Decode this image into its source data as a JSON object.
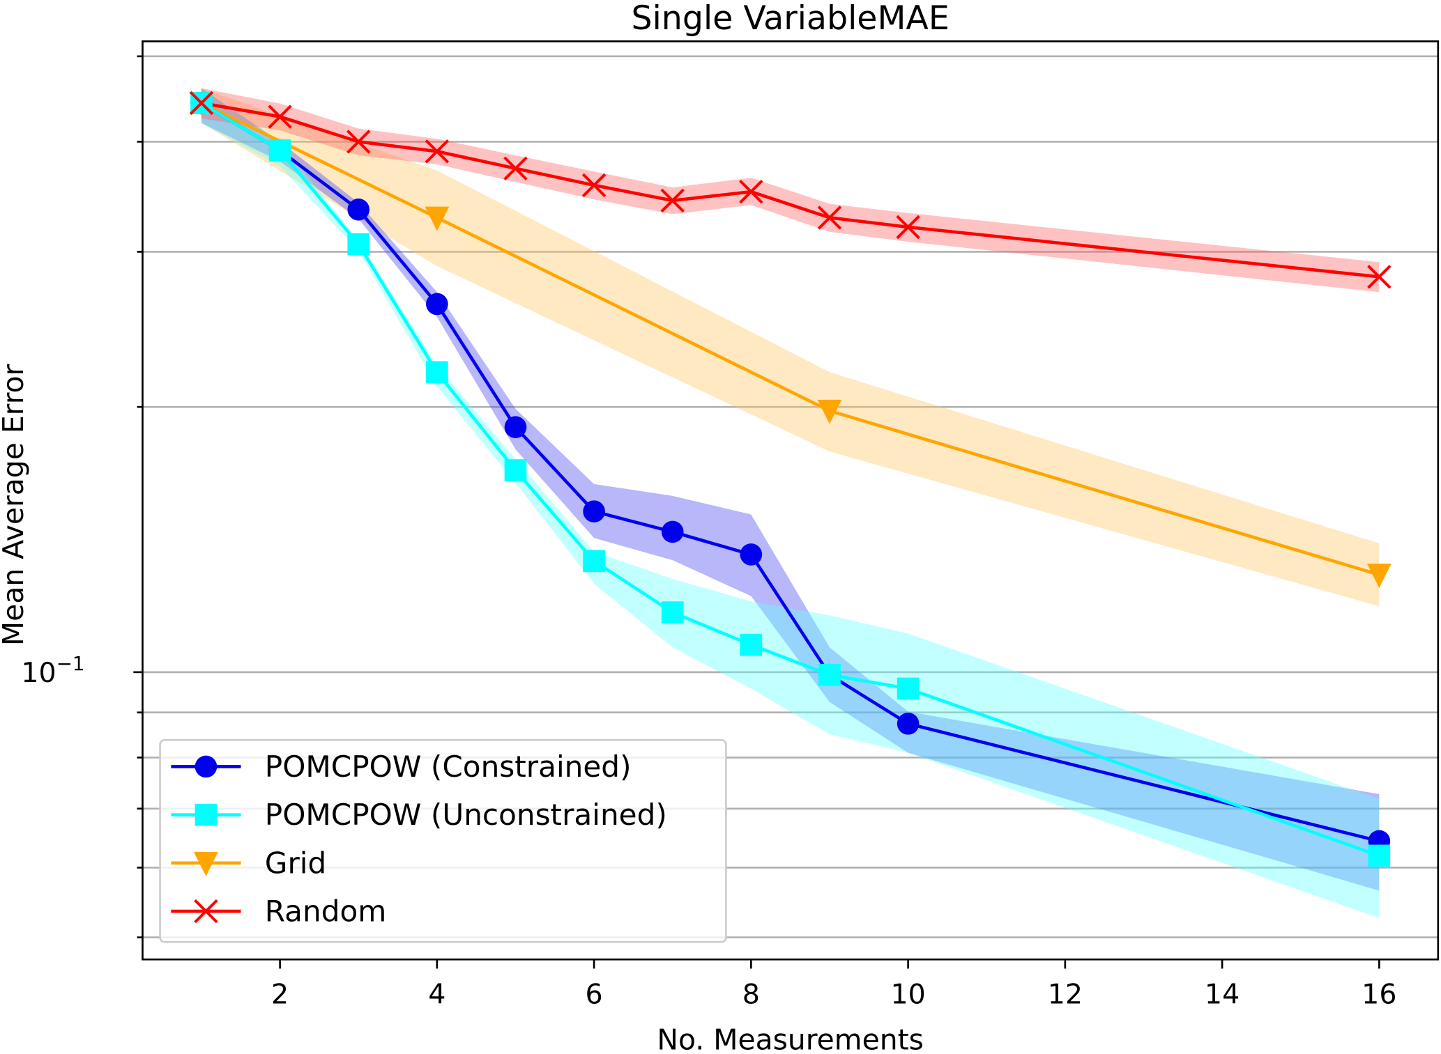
{
  "chart_data": {
    "type": "line",
    "title": "Single VariableMAE",
    "xlabel": "No. Measurements",
    "ylabel": "Mean Average Error",
    "yscale": "log",
    "xlim": [
      0.25,
      16.75
    ],
    "ylim": [
      0.0472,
      0.52
    ],
    "grid": "y",
    "legend_position": "lower-left",
    "x_ticks": [
      2,
      4,
      6,
      8,
      10,
      12,
      14,
      16
    ],
    "x_tick_labels": [
      "2",
      "4",
      "6",
      "8",
      "10",
      "12",
      "14",
      "16"
    ],
    "y_major_ticks": [
      0.1
    ],
    "y_major_tick_labels": [
      "10"
    ],
    "y_major_tick_exponent": "−1",
    "y_minor_ticks": [
      0.05,
      0.06,
      0.07,
      0.08,
      0.09,
      0.2,
      0.3,
      0.4,
      0.5
    ],
    "series": [
      {
        "name": "POMCPOW (Constrained)",
        "color": "#0000ee",
        "band_color": "#4a4af0",
        "marker": "circle",
        "x": [
          1,
          2,
          3,
          4,
          5,
          6,
          7,
          8,
          9,
          10,
          16
        ],
        "values": [
          0.4425,
          0.391,
          0.335,
          0.2617,
          0.1897,
          0.1522,
          0.1443,
          0.136,
          0.0993,
          0.0874,
          0.0643
        ],
        "lower": [
          0.42,
          0.38,
          0.327,
          0.253,
          0.179,
          0.142,
          0.134,
          0.122,
          0.0925,
          0.081,
          0.0565
        ],
        "upper": [
          0.46,
          0.4,
          0.341,
          0.27,
          0.199,
          0.1635,
          0.1585,
          0.151,
          0.1067,
          0.0902,
          0.0727
        ]
      },
      {
        "name": "POMCPOW (Unconstrained)",
        "color": "#00ffff",
        "band_color": "#66ffff",
        "marker": "square",
        "x": [
          1,
          2,
          3,
          4,
          5,
          6,
          7,
          8,
          9,
          10,
          16
        ],
        "values": [
          0.4425,
          0.391,
          0.306,
          0.219,
          0.1695,
          0.1337,
          0.1169,
          0.1074,
          0.0993,
          0.0958,
          0.0619
        ],
        "lower": [
          0.42,
          0.375,
          0.301,
          0.211,
          0.164,
          0.126,
          0.1067,
          0.0958,
          0.085,
          0.081,
          0.0526
        ],
        "upper": [
          0.46,
          0.4,
          0.309,
          0.223,
          0.1745,
          0.137,
          0.1276,
          0.1203,
          0.116,
          0.1106,
          0.0718
        ]
      },
      {
        "name": "Grid",
        "color": "#ffa500",
        "band_color": "#ffc966",
        "marker": "triangle-down",
        "x": [
          1,
          4,
          9,
          16
        ],
        "values": [
          0.4425,
          0.328,
          0.198,
          0.129
        ],
        "lower": [
          0.42,
          0.289,
          0.178,
          0.1188
        ],
        "upper": [
          0.46,
          0.371,
          0.219,
          0.14
        ]
      },
      {
        "name": "Random",
        "color": "#ff0000",
        "band_color": "#ff6666",
        "marker": "x",
        "x": [
          1,
          2,
          3,
          4,
          5,
          6,
          7,
          8,
          9,
          10,
          16
        ],
        "values": [
          0.4425,
          0.427,
          0.4,
          0.39,
          0.373,
          0.357,
          0.343,
          0.351,
          0.328,
          0.32,
          0.281
        ],
        "lower": [
          0.425,
          0.412,
          0.386,
          0.377,
          0.36,
          0.344,
          0.331,
          0.339,
          0.316,
          0.308,
          0.27
        ],
        "upper": [
          0.46,
          0.442,
          0.414,
          0.403,
          0.386,
          0.37,
          0.355,
          0.364,
          0.34,
          0.332,
          0.292
        ]
      }
    ]
  }
}
